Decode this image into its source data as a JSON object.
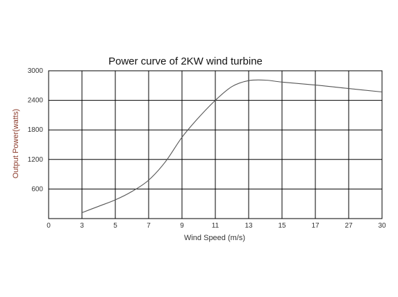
{
  "chart_data": {
    "type": "line",
    "title": "Power curve of  2KW wind turbine",
    "xlabel": "Wind Speed (m/s)",
    "ylabel": "Output Power(watts)",
    "x_ticks": [
      "0",
      "3",
      "5",
      "7",
      "9",
      "11",
      "13",
      "15",
      "17",
      "27",
      "30"
    ],
    "y_ticks": [
      "600",
      "1200",
      "1800",
      "2400",
      "3000"
    ],
    "ylim": [
      0,
      3000
    ],
    "grid": true,
    "x_scale": "categorical tick positions (non-uniform wind speed labels)",
    "series": [
      {
        "x": [
          3,
          4,
          5,
          6,
          7,
          8,
          9,
          10,
          11,
          12,
          13,
          14,
          15,
          17,
          27,
          30
        ],
        "values": [
          120,
          250,
          380,
          550,
          780,
          1150,
          1650,
          2050,
          2400,
          2680,
          2800,
          2810,
          2770,
          2710,
          2640,
          2570
        ]
      }
    ],
    "colors": {
      "line": "#555555",
      "grid": "#000000",
      "ylabel": "#8b3a2a"
    }
  }
}
